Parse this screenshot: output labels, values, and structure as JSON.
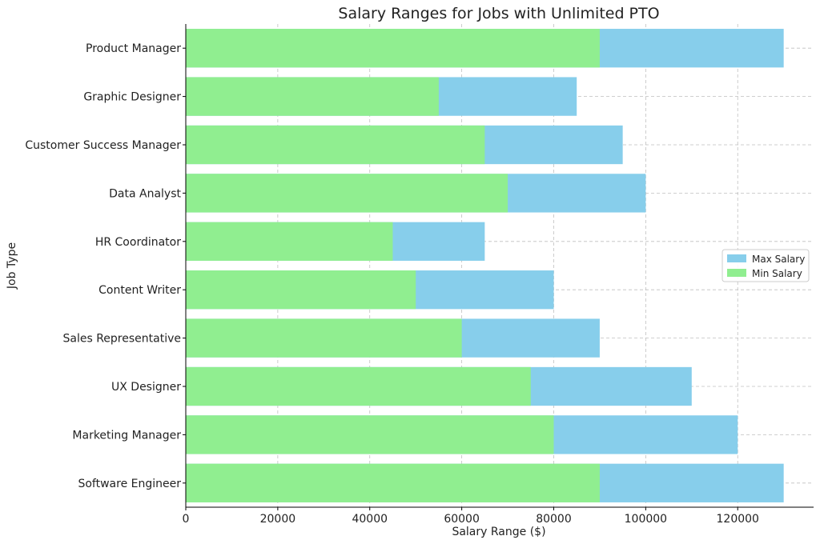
{
  "chart_data": {
    "type": "bar",
    "orientation": "horizontal",
    "stacked": false,
    "title": "Salary Ranges for Jobs with Unlimited PTO",
    "xlabel": "Salary Range ($)",
    "ylabel": "Job Type",
    "xlim": [
      0,
      136500
    ],
    "xticks": [
      0,
      20000,
      40000,
      60000,
      80000,
      100000,
      120000
    ],
    "grid": true,
    "legend_position": "center-right",
    "categories": [
      "Software Engineer",
      "Marketing Manager",
      "UX Designer",
      "Sales Representative",
      "Content Writer",
      "HR Coordinator",
      "Data Analyst",
      "Customer Success Manager",
      "Graphic Designer",
      "Product Manager"
    ],
    "series": [
      {
        "name": "Max Salary",
        "color": "#87ceeb",
        "values": [
          130000,
          120000,
          110000,
          90000,
          80000,
          65000,
          100000,
          95000,
          85000,
          130000
        ]
      },
      {
        "name": "Min Salary",
        "color": "#90ee90",
        "values": [
          90000,
          80000,
          75000,
          60000,
          50000,
          45000,
          70000,
          65000,
          55000,
          90000
        ]
      }
    ]
  }
}
